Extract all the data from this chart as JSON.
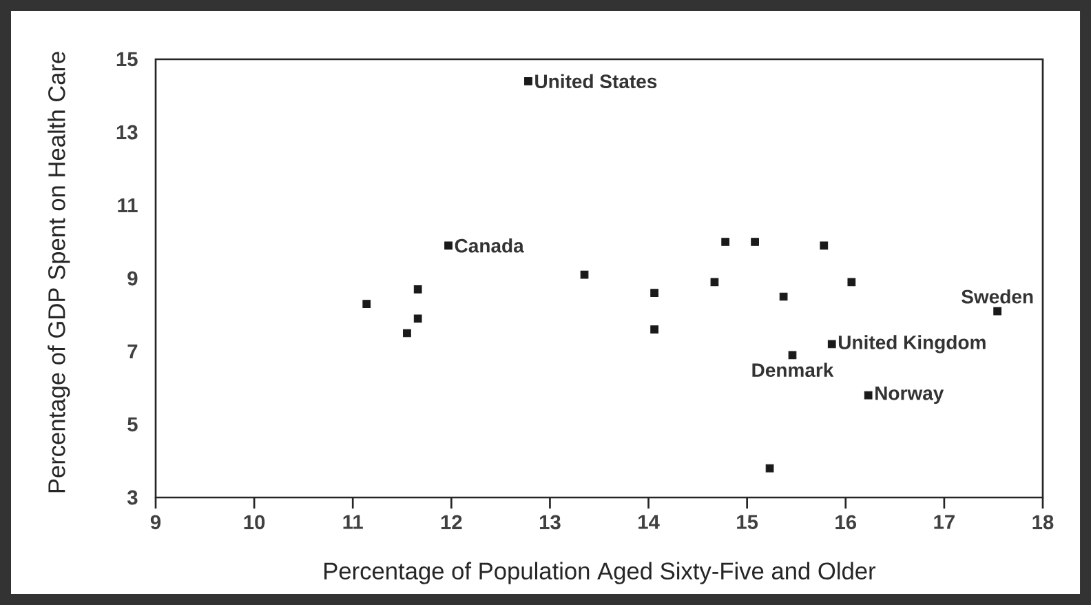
{
  "chart_data": {
    "type": "scatter",
    "xlabel": "Percentage of Population Aged Sixty-Five and Older",
    "ylabel": "Percentage of GDP Spent on Health Care",
    "x": [
      12.78,
      11.97,
      11.14,
      11.66,
      11.66,
      11.55,
      13.35,
      14.06,
      14.06,
      14.67,
      14.78,
      15.08,
      15.78,
      16.06,
      15.37,
      17.54,
      15.86,
      15.46,
      16.23,
      15.23
    ],
    "series": [
      {
        "color": "#1a1a1a",
        "values": [
          14.4,
          9.9,
          8.3,
          8.7,
          7.9,
          7.5,
          9.1,
          8.6,
          7.6,
          8.9,
          10.0,
          10.0,
          9.9,
          8.9,
          8.5,
          8.1,
          7.2,
          6.9,
          5.8,
          3.8
        ]
      }
    ],
    "marker": "square",
    "xlim": [
      9,
      18
    ],
    "ylim": [
      3,
      15
    ],
    "xticks": [
      9,
      10,
      11,
      12,
      13,
      14,
      15,
      16,
      17,
      18
    ],
    "yticks": [
      3,
      5,
      7,
      9,
      11,
      13,
      15
    ],
    "grid": false,
    "annotations": [
      {
        "text": "United States",
        "x": 12.78,
        "y": 14.4
      },
      {
        "text": "Canada",
        "x": 11.97,
        "y": 9.9
      },
      {
        "text": "Sweden",
        "x": 17.54,
        "y": 8.1
      },
      {
        "text": "United Kingdom",
        "x": 15.86,
        "y": 7.2
      },
      {
        "text": "Denmark",
        "x": 15.46,
        "y": 6.9
      },
      {
        "text": "Norway",
        "x": 16.23,
        "y": 5.8
      }
    ]
  }
}
